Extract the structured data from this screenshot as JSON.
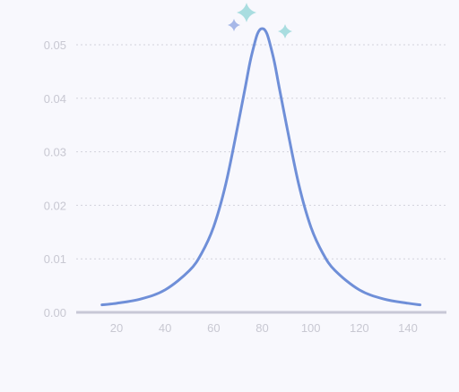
{
  "chart_data": {
    "type": "line",
    "title": "",
    "xlabel": "",
    "ylabel": "",
    "xlim": [
      10,
      150
    ],
    "ylim": [
      0,
      0.053
    ],
    "x_ticks": [
      "20",
      "40",
      "60",
      "80",
      "100",
      "120",
      "140"
    ],
    "y_ticks": [
      "0.00",
      "0.01",
      "0.02",
      "0.03",
      "0.04",
      "0.05"
    ],
    "grid": "horizontal-dotted",
    "legend": "none",
    "series": [
      {
        "color": "#6f8fd8",
        "points": [
          [
            14,
            0.0014
          ],
          [
            20,
            0.0017
          ],
          [
            30,
            0.0025
          ],
          [
            40,
            0.0042
          ],
          [
            50,
            0.0078
          ],
          [
            55,
            0.011
          ],
          [
            60,
            0.016
          ],
          [
            65,
            0.024
          ],
          [
            70,
            0.035
          ],
          [
            73,
            0.042
          ],
          [
            75,
            0.0468
          ],
          [
            77,
            0.0505
          ],
          [
            78,
            0.052
          ],
          [
            79,
            0.0528
          ],
          [
            80,
            0.053
          ],
          [
            81,
            0.0528
          ],
          [
            82,
            0.052
          ],
          [
            83,
            0.0505
          ],
          [
            85,
            0.0468
          ],
          [
            87,
            0.042
          ],
          [
            90,
            0.035
          ],
          [
            95,
            0.024
          ],
          [
            100,
            0.016
          ],
          [
            105,
            0.011
          ],
          [
            110,
            0.0078
          ],
          [
            120,
            0.0042
          ],
          [
            130,
            0.0025
          ],
          [
            140,
            0.0017
          ],
          [
            145,
            0.0014
          ]
        ]
      }
    ]
  },
  "decorations": {
    "sparkle_color_teal": "#a9dde0",
    "sparkle_color_blue": "#a7b8e8"
  }
}
